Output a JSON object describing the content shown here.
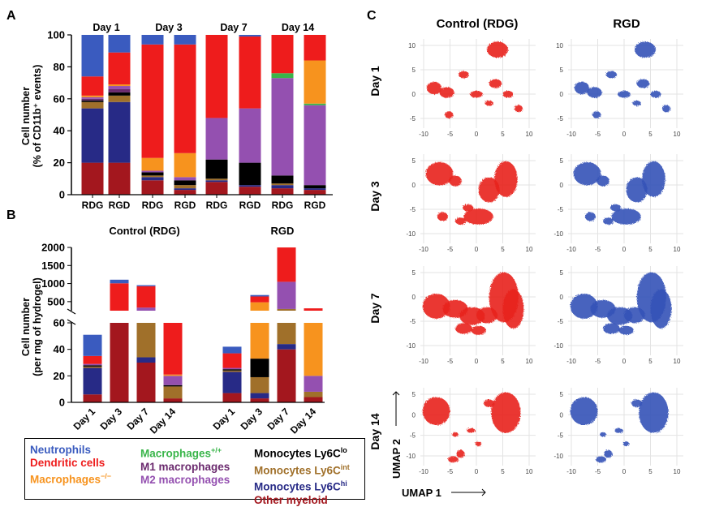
{
  "colors": {
    "neutrophils": "#3a5bbf",
    "dendritic": "#ee1c1c",
    "mac_minus": "#f7931e",
    "mac_plus": "#39b54a",
    "m1": "#6b2a6e",
    "m2": "#9450b0",
    "mono_lo": "#000000",
    "mono_int": "#a0702a",
    "mono_hi": "#272a86",
    "other": "#a3171e",
    "umap_control": "#e8231d",
    "umap_rgd": "#3552b8"
  },
  "panel_letters": {
    "a": "A",
    "b": "B",
    "c": "C"
  },
  "legend": {
    "neutrophils": "Neutrophils",
    "dendritic": "Dendritic cells",
    "mac_minus": "Macrophages",
    "mac_minus_sup": "−/−",
    "mac_plus": "Macrophages",
    "mac_plus_sup": "+/+",
    "m1": "M1 macrophages",
    "m2": "M2 macrophages",
    "mono_lo": "Monocytes Ly6C",
    "mono_lo_sup": "lo",
    "mono_int": "Monocytes Ly6C",
    "mono_int_sup": "int",
    "mono_hi": "Monocytes Ly6C",
    "mono_hi_sup": "hi",
    "other": "Other myeloid"
  },
  "chart_data": [
    {
      "type": "bar",
      "panel": "A",
      "stacked": true,
      "ylabel_line1": "Cell number",
      "ylabel_line2": "(% of CD11b⁺ events)",
      "ylim": [
        0,
        100
      ],
      "yticks": [
        0,
        20,
        40,
        60,
        80,
        100
      ],
      "groups": [
        "Day 1",
        "Day 3",
        "Day 7",
        "Day 14"
      ],
      "categories": [
        "RDG",
        "RGD",
        "RDG",
        "RGD",
        "RDG",
        "RGD",
        "RDG",
        "RGD"
      ],
      "stack_order": [
        "other",
        "mono_hi",
        "mono_int",
        "mono_lo",
        "m1",
        "m2",
        "mac_plus",
        "mac_minus",
        "dendritic",
        "neutrophils"
      ],
      "series": [
        {
          "name": "other",
          "values": [
            20,
            20,
            9,
            3,
            8,
            5,
            4,
            3
          ]
        },
        {
          "name": "mono_hi",
          "values": [
            34,
            38,
            2,
            1,
            1,
            1,
            2,
            1
          ]
        },
        {
          "name": "mono_int",
          "values": [
            4,
            4,
            1,
            2,
            1,
            0,
            1,
            0
          ]
        },
        {
          "name": "mono_lo",
          "values": [
            1,
            2,
            2,
            3,
            12,
            14,
            5,
            2
          ]
        },
        {
          "name": "m1",
          "values": [
            1,
            2,
            0,
            0,
            0,
            0,
            0,
            0
          ]
        },
        {
          "name": "m2",
          "values": [
            1,
            2,
            1,
            2,
            26,
            34,
            61,
            50
          ]
        },
        {
          "name": "mac_plus",
          "values": [
            0,
            0,
            0,
            0,
            0,
            0,
            3,
            1
          ]
        },
        {
          "name": "mac_minus",
          "values": [
            1,
            1,
            8,
            15,
            0,
            0,
            0,
            27
          ]
        },
        {
          "name": "dendritic",
          "values": [
            12,
            20,
            71,
            68,
            52,
            45,
            24,
            16
          ]
        },
        {
          "name": "neutrophils",
          "values": [
            26,
            11,
            6,
            6,
            0,
            1,
            0,
            0
          ]
        }
      ],
      "titles": [
        "Day 1",
        "Day 3",
        "Day 7",
        "Day 14"
      ]
    },
    {
      "type": "bar",
      "panel": "B",
      "stacked": true,
      "broken_axis": true,
      "ylabel_line1": "Cell number",
      "ylabel_line2": "(per mg of hydrogel)",
      "lower_ylim": [
        0,
        60
      ],
      "lower_yticks": [
        0,
        20,
        40,
        60
      ],
      "upper_ylim": [
        250,
        2000
      ],
      "upper_yticks": [
        500,
        1000,
        1500,
        2000
      ],
      "group_titles": [
        "Control (RDG)",
        "RGD"
      ],
      "categories": [
        "Day 1",
        "Day 3",
        "Day 7",
        "Day 14",
        "Day 1",
        "Day 3",
        "Day 7",
        "Day 14"
      ],
      "stack_order": [
        "other",
        "mono_hi",
        "mono_int",
        "mono_lo",
        "m2",
        "mac_minus",
        "dendritic",
        "neutrophils"
      ],
      "series": [
        {
          "name": "other",
          "values": [
            6,
            120,
            30,
            3,
            7,
            3,
            40,
            4
          ]
        },
        {
          "name": "mono_hi",
          "values": [
            20,
            5,
            4,
            0,
            16,
            4,
            4,
            0
          ]
        },
        {
          "name": "mono_int",
          "values": [
            1,
            20,
            140,
            9,
            1,
            12,
            250,
            4
          ]
        },
        {
          "name": "mono_lo",
          "values": [
            1,
            2,
            2,
            1,
            1,
            14,
            5,
            0
          ]
        },
        {
          "name": "m2",
          "values": [
            1,
            0,
            160,
            7,
            1,
            0,
            750,
            12
          ]
        },
        {
          "name": "mac_minus",
          "values": [
            0,
            60,
            0,
            1,
            0,
            450,
            0,
            70
          ]
        },
        {
          "name": "dendritic",
          "values": [
            6,
            800,
            590,
            55,
            11,
            160,
            950,
            225
          ]
        },
        {
          "name": "neutrophils",
          "values": [
            16,
            100,
            30,
            0,
            5,
            40,
            0,
            0
          ]
        }
      ]
    }
  ],
  "umap": {
    "title": "C",
    "col_titles": [
      "Control   (RDG)",
      "RGD"
    ],
    "row_titles": [
      "Day 1",
      "Day 3",
      "Day 7",
      "Day 14"
    ],
    "axis_x": "UMAP 1",
    "axis_y": "UMAP 2",
    "xticks": [
      "-10",
      "-5",
      "0",
      "5",
      "10"
    ],
    "yticks_day1": [
      "10",
      "5",
      "0",
      "-5"
    ],
    "yticks_day3": [
      "5",
      "0",
      "-5",
      "-10"
    ],
    "yticks_day7": [
      "5",
      "0",
      "-5",
      "-10"
    ],
    "yticks_day14": [
      "5",
      "0",
      "-5",
      "-10"
    ]
  }
}
